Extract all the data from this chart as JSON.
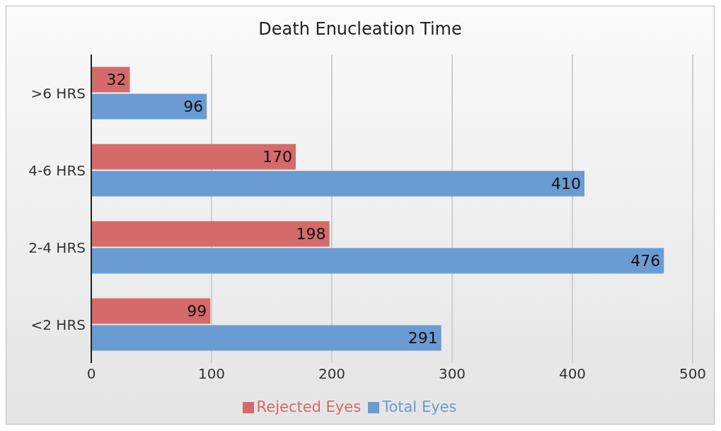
{
  "chart_data": {
    "type": "bar",
    "orientation": "horizontal",
    "title": "Death Enucleation Time",
    "categories": [
      ">6 HRS",
      "4-6 HRS",
      "2-4 HRS",
      "<2 HRS"
    ],
    "series": [
      {
        "name": "Rejected Eyes",
        "color": "#d46a6a",
        "values": [
          32,
          170,
          198,
          99
        ]
      },
      {
        "name": "Total Eyes",
        "color": "#6a9bd2",
        "values": [
          96,
          410,
          476,
          291
        ]
      }
    ],
    "xlim": [
      0,
      500
    ],
    "xticks": [
      0,
      100,
      200,
      300,
      400,
      500
    ],
    "grid": "x",
    "legend": "bottom",
    "data_labels": true
  }
}
